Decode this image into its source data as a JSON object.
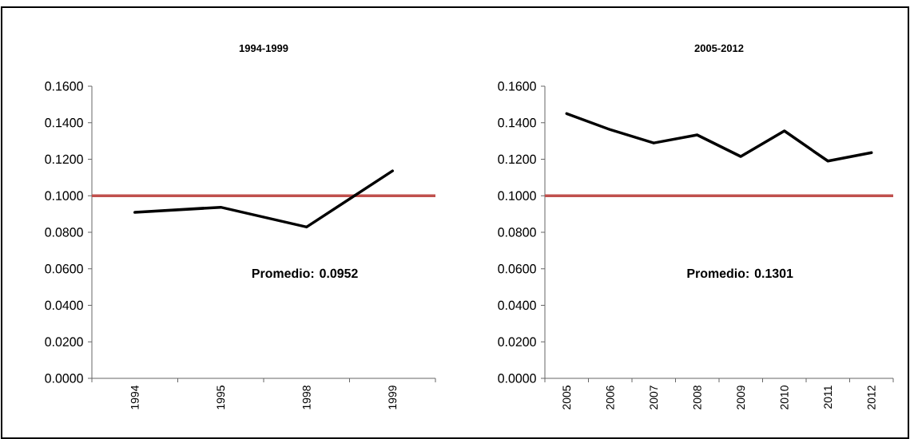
{
  "chart_data": [
    {
      "type": "line",
      "title": "1994-1999",
      "categories": [
        "1994",
        "1995",
        "1998",
        "1999"
      ],
      "series": [
        {
          "color": "#000000",
          "values": [
            0.0909,
            0.0937,
            0.0829,
            0.1136
          ]
        }
      ],
      "ylim": [
        0,
        0.16
      ],
      "yticks": [
        {
          "value": 0,
          "label": "0.0000"
        },
        {
          "value": 0.02,
          "label": "0.0200"
        },
        {
          "value": 0.04,
          "label": "0.0400"
        },
        {
          "value": 0.06,
          "label": "0.0600"
        },
        {
          "value": 0.08,
          "label": "0.0800"
        },
        {
          "value": 0.1,
          "label": "0.1000"
        },
        {
          "value": 0.12,
          "label": "0.1200"
        },
        {
          "value": 0.14,
          "label": "0.1400"
        },
        {
          "value": 0.16,
          "label": "0.1600"
        }
      ],
      "ref_lines": [
        {
          "axis": "y",
          "value": 0.1,
          "color": "#c0504d"
        }
      ],
      "annotations": [
        "Promedio: 0.0952"
      ],
      "grid": false,
      "marker": "none",
      "line_style": "solid"
    },
    {
      "type": "line",
      "title": "2005-2012",
      "categories": [
        "2005",
        "2006",
        "2007",
        "2008",
        "2009",
        "2010",
        "2011",
        "2012"
      ],
      "series": [
        {
          "color": "#000000",
          "values": [
            0.145,
            0.1362,
            0.1289,
            0.1333,
            0.1215,
            0.1355,
            0.119,
            0.1236
          ]
        }
      ],
      "ylim": [
        0,
        0.16
      ],
      "yticks": [
        {
          "value": 0,
          "label": "0.0000"
        },
        {
          "value": 0.02,
          "label": "0.0200"
        },
        {
          "value": 0.04,
          "label": "0.0400"
        },
        {
          "value": 0.06,
          "label": "0.0600"
        },
        {
          "value": 0.08,
          "label": "0.0800"
        },
        {
          "value": 0.1,
          "label": "0.1000"
        },
        {
          "value": 0.12,
          "label": "0.1200"
        },
        {
          "value": 0.14,
          "label": "0.1400"
        },
        {
          "value": 0.16,
          "label": "0.1600"
        }
      ],
      "ref_lines": [
        {
          "axis": "y",
          "value": 0.1,
          "color": "#c0504d"
        }
      ],
      "annotations": [
        "Promedio: 0.1301"
      ],
      "grid": false,
      "marker": "none",
      "line_style": "solid"
    }
  ]
}
